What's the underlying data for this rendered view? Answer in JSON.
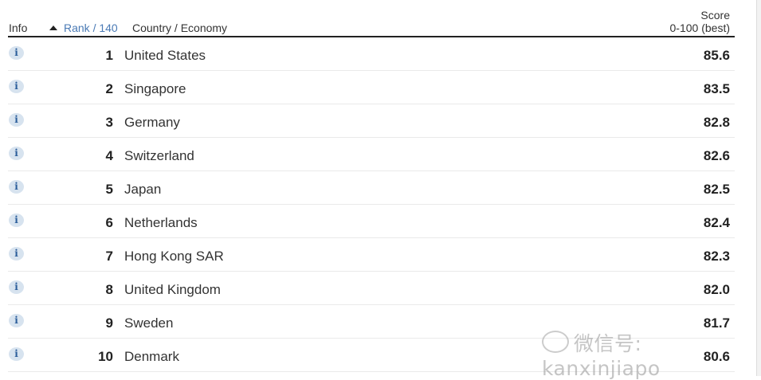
{
  "header": {
    "info": "Info",
    "rank": "Rank / 140",
    "country": "Country / Economy",
    "score_title": "Score",
    "score_range": "0-100 (best)"
  },
  "info_icon_glyph": "i",
  "rows": [
    {
      "rank": "1",
      "country": "United States",
      "score": "85.6"
    },
    {
      "rank": "2",
      "country": "Singapore",
      "score": "83.5"
    },
    {
      "rank": "3",
      "country": "Germany",
      "score": "82.8"
    },
    {
      "rank": "4",
      "country": "Switzerland",
      "score": "82.6"
    },
    {
      "rank": "5",
      "country": "Japan",
      "score": "82.5"
    },
    {
      "rank": "6",
      "country": "Netherlands",
      "score": "82.4"
    },
    {
      "rank": "7",
      "country": "Hong Kong SAR",
      "score": "82.3"
    },
    {
      "rank": "8",
      "country": "United Kingdom",
      "score": "82.0"
    },
    {
      "rank": "9",
      "country": "Sweden",
      "score": "81.7"
    },
    {
      "rank": "10",
      "country": "Denmark",
      "score": "80.6"
    }
  ],
  "watermark": "微信号: kanxinjiapo",
  "colors": {
    "link": "#4a7ab5",
    "info_bg": "#d7e3ef",
    "info_fg": "#2b5d9a"
  }
}
